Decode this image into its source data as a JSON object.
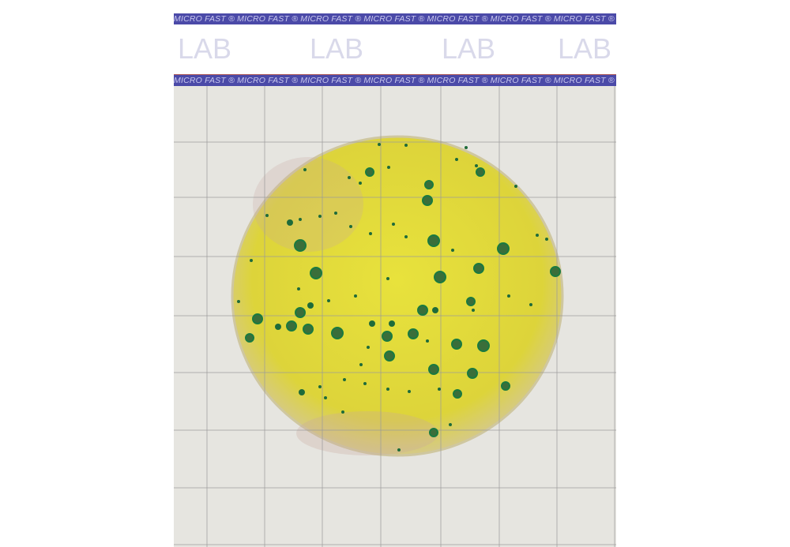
{
  "label": {
    "band_text": "MICRO FAST ® MICRO FAST ® MICRO FAST ® MICRO FAST ® MICRO FAST ® MICRO FAST ® MICRO FAST ®",
    "lab_text": [
      "LAB",
      "LAB",
      "LAB",
      "LAB"
    ],
    "band_color": "#4b4aa8",
    "lab_color": "#d9d9ea"
  },
  "plate": {
    "medium_color": "#e3dc3a",
    "colony_color": "#1e6b3a",
    "grid_color": "#9a9a9a",
    "background_color": "#e6e5e0"
  }
}
